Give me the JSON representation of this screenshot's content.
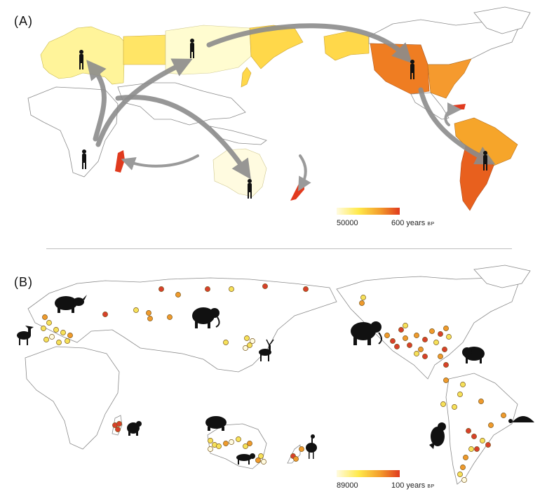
{
  "panel_a": {
    "label": "(A)",
    "legend": {
      "min_label": "50000",
      "max_label": "600 years",
      "unit": "BP",
      "gradient": [
        "#fffbe0",
        "#ffe94a",
        "#f39a2b",
        "#e03a1e"
      ]
    }
  },
  "panel_b": {
    "label": "(B)",
    "legend": {
      "min_label": "89000",
      "max_label": "100 years",
      "unit": "BP",
      "gradient": [
        "#fffbe0",
        "#ffe94a",
        "#f39a2b",
        "#e03a1e"
      ]
    }
  },
  "colors": {
    "europe": "#fff49a",
    "russia": "#ffe566",
    "asia_north": "#fffcd0",
    "east_asia": "#ffd84a",
    "alaska": "#ffd84a",
    "canada": "#ffd030",
    "usa_west": "#ef7d22",
    "usa_east": "#f59a2e",
    "south_america": "#f6a52a",
    "south_america_s": "#e8601e",
    "madagascar": "#e03a1e",
    "new_zealand": "#e23a1e",
    "australia": "#fffbe0",
    "caribbean": "#e03a1e",
    "arrow": "#8c8c8c"
  },
  "icons": [
    "human-silhouette",
    "rhino-silhouette",
    "mammoth-silhouette",
    "deer-silhouette",
    "elk-silhouette",
    "bison-silhouette",
    "lemur-silhouette",
    "diprotodon-silhouette",
    "thylacine-silhouette",
    "moa-silhouette",
    "ground-sloth-silhouette",
    "glyptodon-silhouette"
  ]
}
